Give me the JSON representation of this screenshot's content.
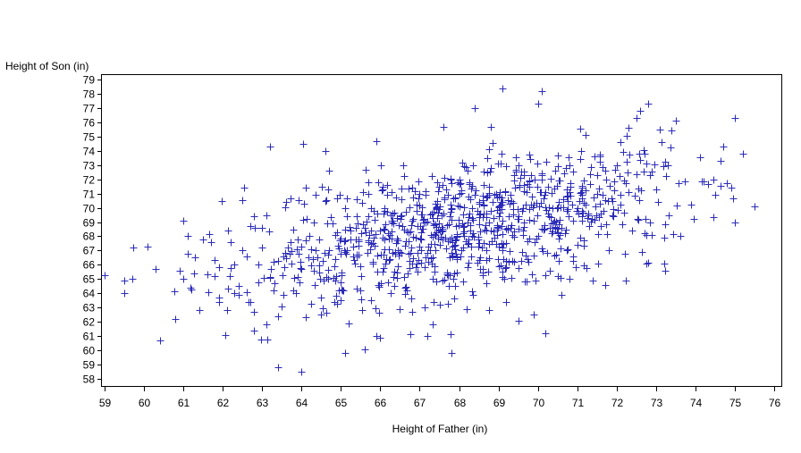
{
  "chart_data": {
    "type": "scatter",
    "title": "",
    "xlabel": "Height of Father (in)",
    "ylabel": "Height of Son (in)",
    "xlim": [
      59,
      76
    ],
    "ylim": [
      58,
      79
    ],
    "x_ticks": [
      "59",
      "60",
      "61",
      "62",
      "63",
      "64",
      "65",
      "66",
      "67",
      "68",
      "69",
      "70",
      "71",
      "72",
      "73",
      "74",
      "75",
      "76"
    ],
    "y_ticks": [
      "58",
      "59",
      "60",
      "61",
      "62",
      "63",
      "64",
      "65",
      "66",
      "67",
      "68",
      "69",
      "70",
      "71",
      "72",
      "73",
      "74",
      "75",
      "76",
      "77",
      "78",
      "79"
    ],
    "marker": "plus",
    "marker_color": "#2a2ab8",
    "grid": false,
    "points": [
      [
        59.0,
        65.3
      ],
      [
        59.5,
        64.9
      ],
      [
        59.5,
        64.0
      ],
      [
        59.7,
        65.0
      ],
      [
        60.1,
        67.3
      ],
      [
        60.3,
        65.7
      ],
      [
        60.4,
        60.7
      ],
      [
        60.8,
        62.2
      ],
      [
        60.9,
        65.6
      ],
      [
        61.0,
        69.1
      ],
      [
        61.0,
        65.0
      ],
      [
        61.1,
        68.0
      ],
      [
        61.1,
        66.8
      ],
      [
        61.2,
        64.3
      ],
      [
        61.3,
        66.5
      ],
      [
        61.5,
        67.8
      ],
      [
        61.7,
        67.6
      ],
      [
        61.8,
        65.2
      ],
      [
        61.9,
        63.7
      ],
      [
        61.9,
        63.4
      ],
      [
        62.1,
        62.8
      ],
      [
        62.2,
        67.6
      ],
      [
        62.2,
        65.8
      ],
      [
        62.3,
        64.0
      ],
      [
        62.3,
        66.0
      ],
      [
        62.4,
        63.9
      ],
      [
        62.5,
        67.0
      ],
      [
        62.6,
        64.1
      ],
      [
        62.6,
        66.6
      ],
      [
        62.7,
        63.4
      ],
      [
        62.7,
        68.7
      ],
      [
        62.8,
        61.4
      ],
      [
        62.8,
        69.4
      ],
      [
        62.9,
        64.8
      ],
      [
        62.9,
        66.0
      ],
      [
        63.0,
        67.2
      ],
      [
        63.0,
        68.6
      ],
      [
        63.1,
        61.8
      ],
      [
        63.1,
        69.5
      ],
      [
        63.2,
        65.1
      ],
      [
        63.2,
        74.3
      ],
      [
        63.3,
        66.2
      ],
      [
        63.3,
        64.2
      ],
      [
        63.4,
        66.3
      ],
      [
        63.4,
        62.4
      ],
      [
        63.4,
        58.8
      ],
      [
        63.5,
        63.1
      ],
      [
        63.6,
        70.4
      ],
      [
        63.7,
        66.8
      ],
      [
        63.8,
        64.2
      ],
      [
        63.8,
        68.5
      ],
      [
        64.0,
        58.5
      ],
      [
        64.0,
        65.7
      ],
      [
        64.1,
        71.4
      ],
      [
        64.1,
        62.3
      ],
      [
        64.2,
        68.0
      ],
      [
        64.3,
        69.0
      ],
      [
        64.4,
        66.5
      ],
      [
        64.5,
        63.7
      ],
      [
        64.5,
        62.5
      ],
      [
        64.6,
        70.5
      ],
      [
        64.6,
        74.0
      ],
      [
        64.7,
        72.6
      ],
      [
        64.7,
        67.0
      ],
      [
        64.8,
        65.1
      ],
      [
        64.9,
        68.3
      ],
      [
        65.0,
        66.8
      ],
      [
        65.0,
        63.5
      ],
      [
        65.1,
        59.8
      ],
      [
        65.1,
        70.0
      ],
      [
        65.2,
        61.9
      ],
      [
        65.3,
        67.3
      ],
      [
        65.4,
        69.4
      ],
      [
        65.5,
        64.2
      ],
      [
        65.6,
        60.1
      ],
      [
        65.7,
        71.0
      ],
      [
        65.8,
        66.2
      ],
      [
        65.9,
        61.0
      ],
      [
        65.9,
        74.7
      ],
      [
        66.0,
        60.9
      ],
      [
        66.1,
        68.5
      ],
      [
        66.2,
        64.8
      ],
      [
        66.3,
        69.1
      ],
      [
        66.4,
        70.7
      ],
      [
        66.5,
        62.9
      ],
      [
        66.5,
        66.9
      ],
      [
        66.6,
        72.2
      ],
      [
        66.7,
        65.4
      ],
      [
        66.8,
        62.7
      ],
      [
        66.9,
        67.9
      ],
      [
        67.0,
        71.0
      ],
      [
        67.1,
        69.0
      ],
      [
        67.2,
        61.0
      ],
      [
        67.3,
        66.1
      ],
      [
        67.4,
        70.3
      ],
      [
        67.5,
        63.2
      ],
      [
        67.6,
        75.7
      ],
      [
        67.7,
        68.8
      ],
      [
        67.8,
        59.8
      ],
      [
        67.9,
        64.5
      ],
      [
        68.0,
        72.0
      ],
      [
        68.1,
        68.2
      ],
      [
        68.2,
        62.9
      ],
      [
        68.3,
        66.6
      ],
      [
        68.4,
        77.0
      ],
      [
        68.5,
        70.4
      ],
      [
        68.6,
        65.3
      ],
      [
        68.7,
        69.6
      ],
      [
        68.8,
        75.7
      ],
      [
        68.9,
        67.9
      ],
      [
        69.0,
        70.8
      ],
      [
        69.1,
        78.4
      ],
      [
        69.2,
        63.4
      ],
      [
        69.3,
        68.6
      ],
      [
        69.4,
        72.3
      ],
      [
        69.5,
        62.1
      ],
      [
        69.6,
        66.9
      ],
      [
        69.7,
        70.2
      ],
      [
        69.8,
        73.4
      ],
      [
        69.9,
        62.5
      ],
      [
        70.0,
        77.3
      ],
      [
        70.1,
        78.2
      ],
      [
        70.2,
        61.2
      ],
      [
        70.3,
        65.6
      ],
      [
        70.4,
        69.0
      ],
      [
        70.5,
        72.9
      ],
      [
        70.6,
        63.9
      ],
      [
        70.7,
        68.2
      ],
      [
        70.8,
        71.1
      ],
      [
        70.9,
        66.3
      ],
      [
        71.0,
        70.0
      ],
      [
        71.1,
        74.0
      ],
      [
        71.2,
        75.1
      ],
      [
        71.3,
        68.7
      ],
      [
        71.4,
        64.9
      ],
      [
        71.5,
        72.3
      ],
      [
        71.6,
        69.6
      ],
      [
        71.7,
        64.6
      ],
      [
        71.8,
        67.0
      ],
      [
        71.9,
        70.5
      ],
      [
        72.0,
        73.0
      ],
      [
        72.1,
        74.6
      ],
      [
        72.2,
        66.8
      ],
      [
        72.3,
        71.1
      ],
      [
        72.4,
        68.4
      ],
      [
        72.5,
        76.3
      ],
      [
        72.6,
        76.8
      ],
      [
        72.7,
        73.8
      ],
      [
        72.8,
        77.3
      ],
      [
        72.9,
        68.1
      ],
      [
        73.0,
        71.3
      ],
      [
        73.1,
        75.5
      ],
      [
        73.2,
        67.9
      ],
      [
        73.3,
        73.0
      ],
      [
        73.4,
        75.4
      ],
      [
        73.5,
        76.1
      ],
      [
        73.9,
        70.2
      ],
      [
        74.5,
        70.9
      ],
      [
        74.7,
        74.3
      ],
      [
        74.8,
        71.7
      ],
      [
        74.9,
        71.4
      ],
      [
        75.0,
        69.0
      ],
      [
        75.2,
        73.8
      ],
      [
        75.5,
        70.1
      ]
    ],
    "cluster": {
      "x_center": 68.2,
      "y_center": 68.6,
      "x_sd": 2.7,
      "y_sd": 2.6,
      "correlation": 0.5,
      "count": 860,
      "x_range": [
        59.5,
        75.5
      ],
      "y_range": [
        59,
        78
      ]
    }
  }
}
